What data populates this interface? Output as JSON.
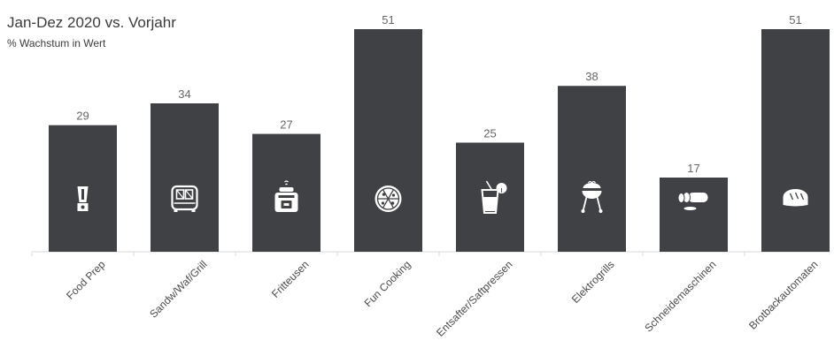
{
  "chart_data": {
    "type": "bar",
    "title": "Jan-Dez 2020 vs. Vorjahr",
    "subtitle": "% Wachstum in Wert",
    "categories": [
      "Food Prep",
      "Sandw/Waf/Grill",
      "Fritteusen",
      "Fun Cooking",
      "Entsafter/Saftpressen",
      "Elektrogrills",
      "Schneidemaschinen",
      "Brotbackautomaten"
    ],
    "values": [
      29,
      34,
      27,
      51,
      25,
      38,
      17,
      51
    ],
    "icons": [
      "blender-icon",
      "sandwich-maker-icon",
      "fryer-icon",
      "pizza-icon",
      "juice-glass-icon",
      "grill-icon",
      "sliced-sausage-icon",
      "bread-icon"
    ],
    "ylim": [
      0,
      51
    ],
    "bar_color": "#404144",
    "icon_color": "#ffffff",
    "grid": false,
    "legend": "none"
  }
}
